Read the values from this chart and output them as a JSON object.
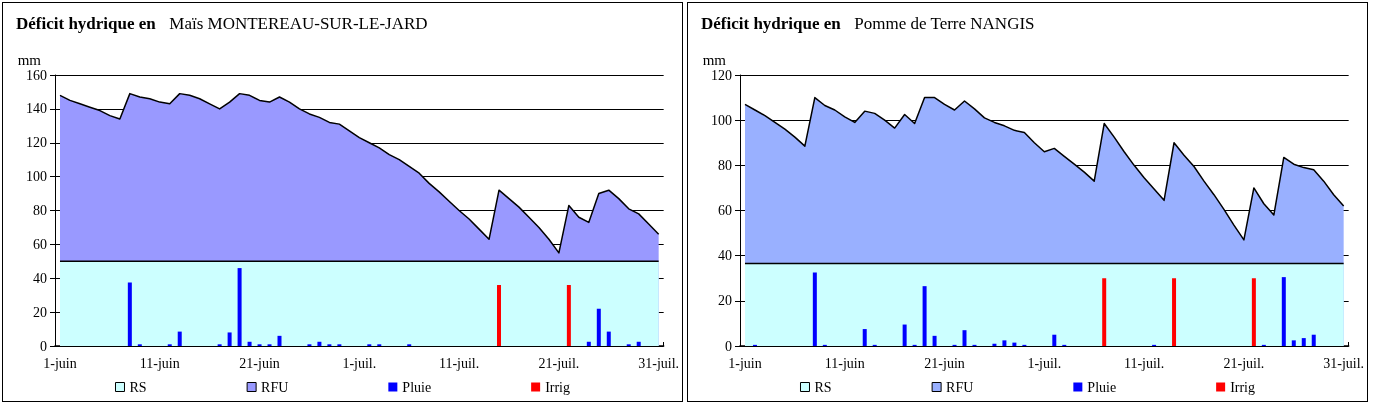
{
  "chart_data": [
    {
      "type": "area",
      "title": "Déficit hydrique en",
      "subtitle": "Maïs MONTEREAU-SUR-LE-JARD",
      "ylabel": "mm",
      "categories": [
        "1-juin",
        null,
        null,
        null,
        null,
        null,
        null,
        null,
        null,
        null,
        "11-juin",
        null,
        null,
        null,
        null,
        null,
        null,
        null,
        null,
        null,
        "21-juin",
        null,
        null,
        null,
        null,
        null,
        null,
        null,
        null,
        null,
        "1-juil.",
        null,
        null,
        null,
        null,
        null,
        null,
        null,
        null,
        null,
        "11-juil.",
        null,
        null,
        null,
        null,
        null,
        null,
        null,
        null,
        null,
        "21-juil.",
        null,
        null,
        null,
        null,
        null,
        null,
        null,
        null,
        null,
        "31-juil."
      ],
      "ylim": [
        0,
        160
      ],
      "yticks": [
        0,
        20,
        40,
        60,
        80,
        100,
        120,
        140,
        160
      ],
      "grid": "y",
      "legend": "bottom",
      "series": [
        {
          "name": "RS",
          "color": "#ccffff",
          "values": [
            50,
            50,
            50,
            50,
            50,
            50,
            50,
            50,
            50,
            50,
            50,
            50,
            50,
            50,
            50,
            50,
            50,
            50,
            50,
            50,
            50,
            50,
            50,
            50,
            50,
            50,
            50,
            50,
            50,
            50,
            50,
            50,
            50,
            50,
            50,
            50,
            50,
            50,
            50,
            50,
            50,
            50,
            50,
            50,
            50,
            50,
            50,
            50,
            50,
            50,
            50,
            50,
            50,
            50,
            50,
            50,
            50,
            50,
            50,
            50,
            50
          ]
        },
        {
          "name": "RFU",
          "color": "#9999ff",
          "values": [
            148,
            145,
            143,
            141,
            139,
            136,
            134,
            149,
            147,
            146,
            144,
            143,
            149,
            148,
            146,
            143,
            140,
            144,
            149,
            148,
            145,
            144,
            147,
            144,
            140,
            137,
            135,
            132,
            131,
            127,
            123,
            120,
            117,
            113,
            110,
            106,
            102,
            96,
            91,
            85.5,
            80,
            75,
            69,
            63,
            92,
            87,
            82,
            76,
            70,
            63,
            55,
            83,
            76,
            73,
            90,
            92,
            87,
            81,
            78,
            72,
            66
          ]
        },
        {
          "name": "Pluie",
          "type": "bar",
          "color": "#0000ff",
          "values": [
            null,
            null,
            null,
            null,
            null,
            null,
            null,
            37.5,
            1,
            null,
            null,
            1,
            8.5,
            null,
            null,
            null,
            1,
            8,
            46,
            2.5,
            1,
            1,
            6,
            null,
            null,
            1,
            2.5,
            1,
            1,
            null,
            null,
            1,
            1,
            null,
            null,
            1,
            null,
            null,
            null,
            null,
            null,
            null,
            null,
            null,
            null,
            null,
            null,
            null,
            null,
            null,
            null,
            null,
            null,
            2.5,
            22,
            8.5,
            null,
            1,
            2.5,
            null,
            null
          ]
        },
        {
          "name": "Irrig",
          "type": "bar",
          "color": "#ff0000",
          "values": [
            null,
            null,
            null,
            null,
            null,
            null,
            null,
            null,
            null,
            null,
            null,
            null,
            null,
            null,
            null,
            null,
            null,
            null,
            null,
            null,
            null,
            null,
            null,
            null,
            null,
            null,
            null,
            null,
            null,
            null,
            null,
            null,
            null,
            null,
            null,
            null,
            null,
            null,
            null,
            null,
            null,
            null,
            null,
            null,
            36,
            null,
            null,
            null,
            null,
            null,
            null,
            36,
            null,
            null,
            null,
            null,
            null,
            null,
            null,
            null,
            null
          ]
        }
      ]
    },
    {
      "type": "area",
      "title": "Déficit hydrique en",
      "subtitle": "Pomme de Terre NANGIS",
      "ylabel": "mm",
      "categories": [
        "1-juin",
        null,
        null,
        null,
        null,
        null,
        null,
        null,
        null,
        null,
        "11-juin",
        null,
        null,
        null,
        null,
        null,
        null,
        null,
        null,
        null,
        "21-juin",
        null,
        null,
        null,
        null,
        null,
        null,
        null,
        null,
        null,
        "1-juil.",
        null,
        null,
        null,
        null,
        null,
        null,
        null,
        null,
        null,
        "11-juil.",
        null,
        null,
        null,
        null,
        null,
        null,
        null,
        null,
        null,
        "21-juil.",
        null,
        null,
        null,
        null,
        null,
        null,
        null,
        null,
        null,
        "31-juil."
      ],
      "ylim": [
        0,
        120
      ],
      "yticks": [
        0,
        20,
        40,
        60,
        80,
        100,
        120
      ],
      "grid": "y",
      "legend": "bottom",
      "series": [
        {
          "name": "RS",
          "color": "#ccffff",
          "values": [
            36.5,
            36.5,
            36.5,
            36.5,
            36.5,
            36.5,
            36.5,
            36.5,
            36.5,
            36.5,
            36.5,
            36.5,
            36.5,
            36.5,
            36.5,
            36.5,
            36.5,
            36.5,
            36.5,
            36.5,
            36.5,
            36.5,
            36.5,
            36.5,
            36.5,
            36.5,
            36.5,
            36.5,
            36.5,
            36.5,
            36.5,
            36.5,
            36.5,
            36.5,
            36.5,
            36.5,
            36.5,
            36.5,
            36.5,
            36.5,
            36.5,
            36.5,
            36.5,
            36.5,
            36.5,
            36.5,
            36.5,
            36.5,
            36.5,
            36.5,
            36.5,
            36.5,
            36.5,
            36.5,
            36.5,
            36.5,
            36.5,
            36.5,
            36.5,
            36.5,
            36.5
          ]
        },
        {
          "name": "RFU",
          "color": "#99b0ff",
          "values": [
            107,
            104.5,
            102,
            99,
            96,
            92.5,
            88.5,
            110,
            106.5,
            104.5,
            101.5,
            99,
            104,
            103,
            100,
            96.5,
            102.5,
            98.5,
            110,
            110,
            107,
            104.5,
            108.5,
            105,
            101,
            99,
            97.5,
            95.5,
            94.5,
            90,
            86,
            87.5,
            84,
            80.5,
            77,
            73,
            98.5,
            92.5,
            86,
            80,
            74.5,
            69.5,
            64.5,
            90,
            84.5,
            79.5,
            73,
            67,
            60.5,
            53.5,
            47,
            70,
            63,
            58,
            83.5,
            80.5,
            79,
            78,
            73,
            67,
            62
          ]
        },
        {
          "name": "Pluie",
          "type": "bar",
          "color": "#0000ff",
          "values": [
            null,
            0.5,
            null,
            null,
            null,
            null,
            null,
            32.5,
            0.5,
            null,
            null,
            null,
            7.5,
            0.5,
            null,
            null,
            9.5,
            0.5,
            26.5,
            4.5,
            null,
            0.5,
            7,
            0.5,
            null,
            1,
            2.5,
            1.5,
            0.5,
            null,
            null,
            5,
            0.5,
            null,
            null,
            null,
            null,
            null,
            null,
            null,
            null,
            0.5,
            null,
            null,
            null,
            null,
            null,
            null,
            null,
            null,
            null,
            null,
            0.5,
            null,
            30.5,
            2.5,
            3.5,
            5,
            null,
            null,
            null
          ]
        },
        {
          "name": "Irrig",
          "type": "bar",
          "color": "#ff0000",
          "values": [
            null,
            null,
            null,
            null,
            null,
            null,
            null,
            null,
            null,
            null,
            null,
            null,
            null,
            null,
            null,
            null,
            null,
            null,
            null,
            null,
            null,
            null,
            null,
            null,
            null,
            null,
            null,
            null,
            null,
            null,
            null,
            null,
            null,
            null,
            null,
            null,
            30,
            null,
            null,
            null,
            null,
            null,
            null,
            30,
            null,
            null,
            null,
            null,
            null,
            null,
            null,
            30,
            null,
            null,
            null,
            null,
            null,
            null,
            null,
            null,
            null
          ]
        }
      ]
    }
  ]
}
